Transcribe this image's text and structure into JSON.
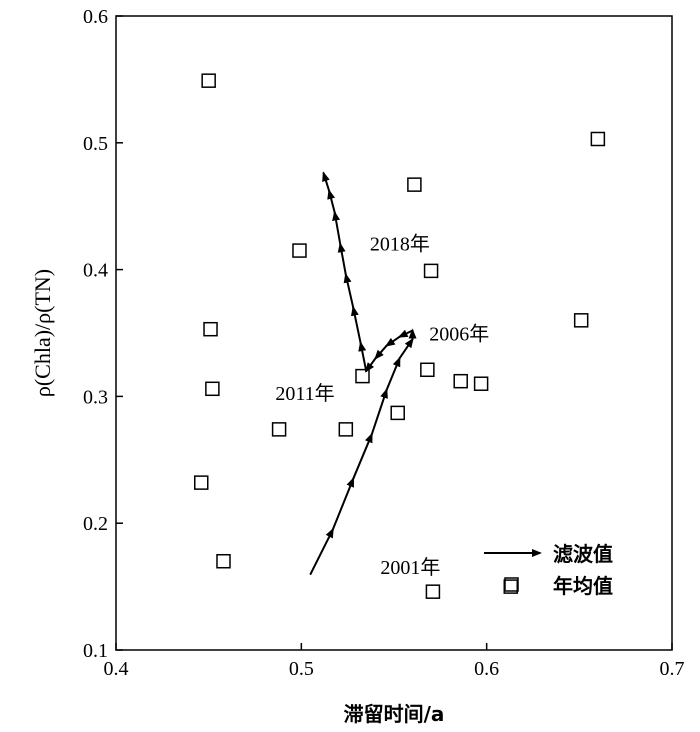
{
  "chart_data": {
    "type": "scatter",
    "xlabel": "滞留时间/a",
    "ylabel": "ρ(Chla)/ρ(TN)",
    "xlim": [
      0.4,
      0.7
    ],
    "ylim": [
      0.1,
      0.6
    ],
    "xticks": [
      "0.4",
      "0.5",
      "0.6",
      "0.7"
    ],
    "yticks": [
      "0.1",
      "0.2",
      "0.3",
      "0.4",
      "0.5",
      "0.6"
    ],
    "grid": false,
    "legend_position": "bottom-right",
    "series": [
      {
        "name": "年均值",
        "marker": "open-square",
        "x": [
          0.45,
          0.66,
          0.561,
          0.499,
          0.57,
          0.451,
          0.651,
          0.568,
          0.452,
          0.533,
          0.586,
          0.597,
          0.552,
          0.488,
          0.524,
          0.446,
          0.458,
          0.571,
          0.613
        ],
        "y": [
          0.549,
          0.503,
          0.467,
          0.415,
          0.399,
          0.353,
          0.36,
          0.321,
          0.306,
          0.316,
          0.312,
          0.31,
          0.287,
          0.274,
          0.274,
          0.232,
          0.17,
          0.146,
          0.15
        ]
      },
      {
        "name": "滤波值",
        "marker": "arrow-line",
        "x": [
          0.505,
          0.517,
          0.528,
          0.538,
          0.546,
          0.553,
          0.56,
          0.56,
          0.553,
          0.546,
          0.54,
          0.535,
          0.532,
          0.528,
          0.524,
          0.521,
          0.518,
          0.515,
          0.512
        ],
        "y": [
          0.16,
          0.195,
          0.235,
          0.27,
          0.305,
          0.33,
          0.345,
          0.352,
          0.347,
          0.34,
          0.33,
          0.32,
          0.342,
          0.37,
          0.396,
          0.42,
          0.445,
          0.462,
          0.476
        ]
      }
    ],
    "annotations": [
      {
        "text": "2001年",
        "x": 0.575,
        "y": 0.16,
        "anchor": "end"
      },
      {
        "text": "2006年",
        "x": 0.569,
        "y": 0.344,
        "anchor": "start"
      },
      {
        "text": "2011年",
        "x": 0.486,
        "y": 0.297,
        "anchor": "start"
      },
      {
        "text": "2018年",
        "x": 0.537,
        "y": 0.415,
        "anchor": "start"
      }
    ],
    "legend": {
      "line_label": "滤波值",
      "marker_label": "年均值"
    }
  }
}
